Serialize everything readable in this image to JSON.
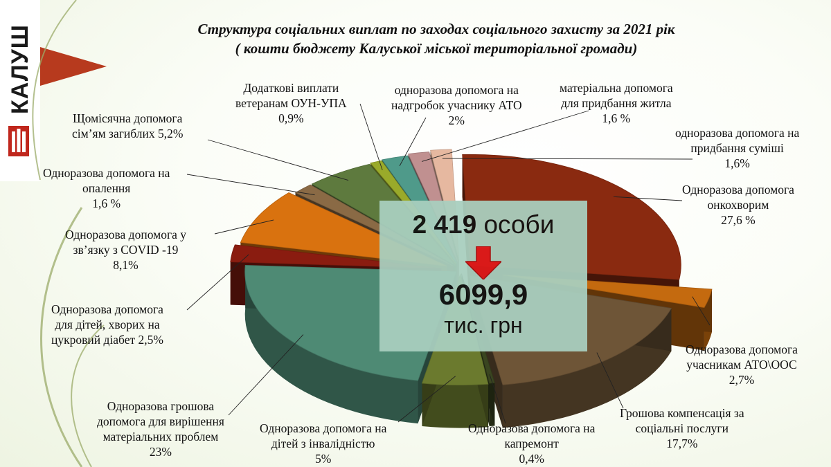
{
  "logo": {
    "text": "КАЛУШ"
  },
  "title": {
    "line1": "Структура соціальних виплат по заходах соціального захисту за 2021 рік",
    "line2": "( кошти бюджету Калуської міської територіальної громади)"
  },
  "center": {
    "persons_number": "2 419",
    "persons_word": "особи",
    "amount": "6099,9",
    "unit": "тис. грн"
  },
  "colors": {
    "accent": "#b73a1e",
    "box": "#a9cfbf",
    "arrow": "#e01a1a"
  },
  "chart_data": {
    "type": "pie",
    "title": "Структура соціальних виплат по заходах соціального захисту за 2021 рік",
    "series": [
      {
        "name": "Одноразова допомога онкохворим",
        "value": 27.6,
        "value_label": "27,6 %",
        "color": "#8a2a10"
      },
      {
        "name": "Одноразова допомога учасникам АТО\\ООС",
        "value": 2.7,
        "value_label": "2,7%",
        "color": "#c46a0f"
      },
      {
        "name": "Грошова компенсація за соціальні послуги",
        "value": 17.7,
        "value_label": "17,7%",
        "color": "#6e5537"
      },
      {
        "name": "Одноразова допомога на капремонт",
        "value": 0.4,
        "value_label": "0,4%",
        "color": "#3a4520"
      },
      {
        "name": "Одноразова допомога на дітей з інвалідністю",
        "value": 5,
        "value_label": "5%",
        "color": "#6b7a2e"
      },
      {
        "name": "Одноразова грошова допомога для вирішення матеріальних проблем",
        "value": 23,
        "value_label": "23%",
        "color": "#4e8a74"
      },
      {
        "name": "Одноразова допомога для дітей, хворих на цукровий діабет",
        "value": 2.5,
        "value_label": "2,5%",
        "color": "#8a1c10"
      },
      {
        "name": "Одноразова допомога у зв’язку з COVID -19",
        "value": 8.1,
        "value_label": "8,1%",
        "color": "#d9720f"
      },
      {
        "name": "Одноразова допомога на опалення",
        "value": 1.6,
        "value_label": "1,6 %",
        "color": "#8a6a45"
      },
      {
        "name": "Щомісячна допомога сім’ям загиблих",
        "value": 5.2,
        "value_label": "5,2%",
        "color": "#5e7a3e"
      },
      {
        "name": "Додаткові виплати ветеранам ОУН-УПА",
        "value": 0.9,
        "value_label": "0,9%",
        "color": "#9aaa2a"
      },
      {
        "name": "одноразова допомога на надгробок учаснику АТО",
        "value": 2,
        "value_label": "2%",
        "color": "#4f9a8a"
      },
      {
        "name": "матеріальна допомога для придбання житла",
        "value": 1.6,
        "value_label": "1,6 %",
        "color": "#c09090"
      },
      {
        "name": "одноразова допомога на придбання суміші",
        "value": 1.6,
        "value_label": "1,6%",
        "color": "#e6b8a0"
      }
    ]
  },
  "labels": [
    {
      "l1": "Одноразова допомога",
      "l2": "онкохворим",
      "v": "27,6 %"
    },
    {
      "l1": "Одноразова допомога",
      "l2": "учасникам АТО\\ООС",
      "v": "2,7%"
    },
    {
      "l1": "Грошова компенсація за",
      "l2": "соціальні послуги",
      "v": "17,7%"
    },
    {
      "l1": "Одноразова допомога на",
      "l2": "капремонт",
      "v": "0,4%"
    },
    {
      "l1": "Одноразова допомога на",
      "l2": "дітей з інвалідністю",
      "v": "5%"
    },
    {
      "l1": "Одноразова грошова",
      "l2": "допомога для вирішення",
      "l3": "матеріальних проблем",
      "v": "23%"
    },
    {
      "l1": "Одноразова допомога",
      "l2": "для дітей, хворих на",
      "l3": "цукровий діабет 2,5%"
    },
    {
      "l1": "Одноразова допомога у",
      "l2": "зв’язку з  COVID -19",
      "v": "8,1%"
    },
    {
      "l1": "Одноразова допомога на",
      "l2": "опалення",
      "v": "1,6 %"
    },
    {
      "l1": "Щомісячна допомога",
      "l2": "сім’ям загиблих 5,2%"
    },
    {
      "l1": "Додаткові виплати",
      "l2": "ветеранам ОУН-УПА",
      "v": "0,9%"
    },
    {
      "l1": "одноразова допомога на",
      "l2": "надгробок учаснику АТО",
      "v": "2%"
    },
    {
      "l1": "матеріальна допомога",
      "l2": "для придбання житла",
      "v": "1,6 %"
    },
    {
      "l1": "одноразова допомога на",
      "l2": "придбання суміші",
      "v": "1,6%"
    }
  ]
}
